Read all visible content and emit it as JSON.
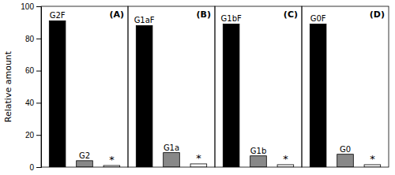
{
  "chart_data": [
    {
      "type": "bar",
      "title": "(A)",
      "categories": [
        "G2F",
        "G2",
        "*"
      ],
      "values": [
        91,
        4,
        1
      ],
      "colors": [
        "#000000",
        "#888888",
        "#ffffff"
      ],
      "ylabel": "Relative amount",
      "ylim": [
        0,
        100
      ],
      "yticks": [
        0,
        20,
        40,
        60,
        80,
        100
      ],
      "tick_labels": "y"
    },
    {
      "type": "bar",
      "title": "(B)",
      "categories": [
        "G1aF",
        "G1a",
        "*"
      ],
      "values": [
        88,
        9,
        2
      ],
      "colors": [
        "#000000",
        "#888888",
        "#ffffff"
      ],
      "ylim": [
        0,
        100
      ],
      "tick_labels": false
    },
    {
      "type": "bar",
      "title": "(C)",
      "categories": [
        "G1bF",
        "G1b",
        "*"
      ],
      "values": [
        89,
        7,
        1.5
      ],
      "colors": [
        "#000000",
        "#888888",
        "#ffffff"
      ],
      "ylim": [
        0,
        100
      ],
      "tick_labels": false
    },
    {
      "type": "bar",
      "title": "(D)",
      "categories": [
        "G0F",
        "G0",
        "*"
      ],
      "values": [
        89,
        8,
        1.5
      ],
      "colors": [
        "#000000",
        "#888888",
        "#ffffff"
      ],
      "ylim": [
        0,
        100
      ],
      "tick_labels": false
    }
  ]
}
